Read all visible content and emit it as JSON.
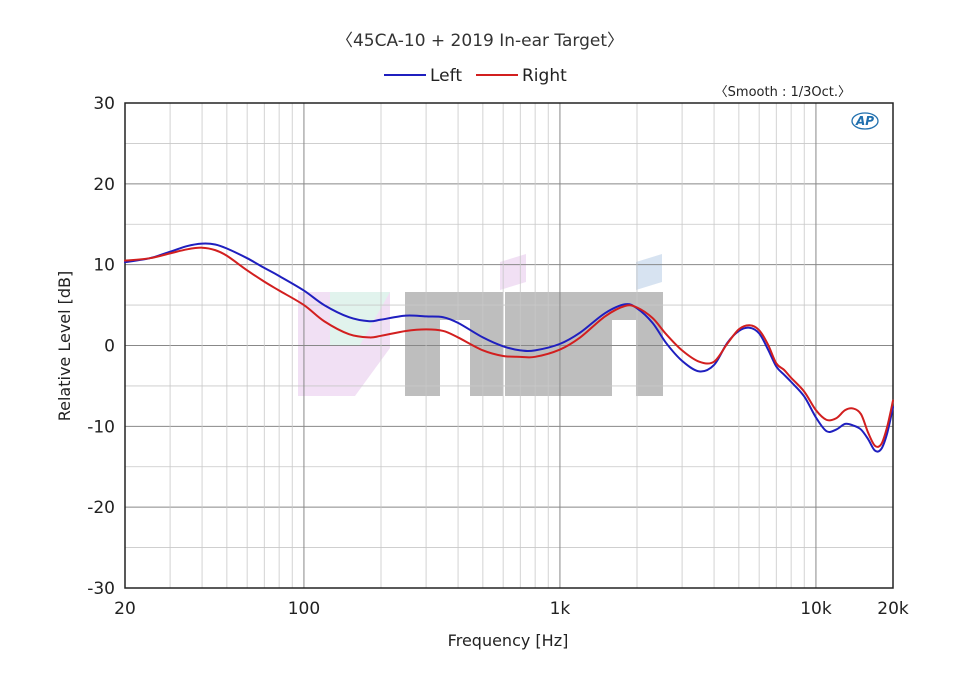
{
  "chart_data": {
    "type": "line",
    "title": "〈45CA-10 + 2019 In-ear Target〉",
    "xlabel": "Frequency [Hz]",
    "ylabel": "Relative Level [dB]",
    "xscale": "log",
    "xlim": [
      20,
      20000
    ],
    "ylim": [
      -30,
      30
    ],
    "xticks": [
      {
        "value": 20,
        "label": "20"
      },
      {
        "value": 100,
        "label": "100"
      },
      {
        "value": 1000,
        "label": "1k"
      },
      {
        "value": 10000,
        "label": "10k"
      },
      {
        "value": 20000,
        "label": "20k"
      }
    ],
    "yticks": [
      {
        "value": 30,
        "label": "30"
      },
      {
        "value": 20,
        "label": "20"
      },
      {
        "value": 10,
        "label": "10"
      },
      {
        "value": 0,
        "label": "0"
      },
      {
        "value": -10,
        "label": "-10"
      },
      {
        "value": -20,
        "label": "-20"
      },
      {
        "value": -30,
        "label": "-30"
      }
    ],
    "grid": true,
    "legend_position": "top-center",
    "smoothing_note": "〈Smooth : 1/3Oct.〉",
    "brand_mark": "AP",
    "series": [
      {
        "name": "Left",
        "color": "#1f1fbf",
        "x": [
          20,
          25,
          30,
          35,
          40,
          45,
          50,
          60,
          70,
          80,
          100,
          120,
          150,
          180,
          200,
          250,
          300,
          350,
          400,
          500,
          600,
          700,
          800,
          1000,
          1200,
          1500,
          1800,
          2000,
          2300,
          2600,
          3000,
          3500,
          4000,
          4500,
          5000,
          5500,
          6000,
          6500,
          7000,
          7500,
          8000,
          9000,
          10000,
          11000,
          12000,
          13000,
          14000,
          15000,
          16000,
          17000,
          18000,
          19000,
          20000
        ],
        "y": [
          10.3,
          10.8,
          11.6,
          12.3,
          12.6,
          12.5,
          12.0,
          10.8,
          9.6,
          8.6,
          6.8,
          5.0,
          3.5,
          3.0,
          3.2,
          3.7,
          3.6,
          3.5,
          2.8,
          1.0,
          -0.1,
          -0.6,
          -0.6,
          0.2,
          1.6,
          4.0,
          5.1,
          4.6,
          2.8,
          0.3,
          -1.9,
          -3.2,
          -2.4,
          0.3,
          1.8,
          2.2,
          1.5,
          -0.5,
          -2.6,
          -3.6,
          -4.5,
          -6.3,
          -8.9,
          -10.6,
          -10.4,
          -9.7,
          -9.9,
          -10.4,
          -11.6,
          -13.0,
          -12.8,
          -10.8,
          -7.6
        ]
      },
      {
        "name": "Right",
        "color": "#d21f1f",
        "x": [
          20,
          25,
          30,
          35,
          40,
          45,
          50,
          60,
          70,
          80,
          100,
          120,
          150,
          180,
          200,
          250,
          300,
          350,
          400,
          500,
          600,
          700,
          800,
          1000,
          1200,
          1500,
          1800,
          2000,
          2300,
          2600,
          3000,
          3500,
          4000,
          4500,
          5000,
          5500,
          6000,
          6500,
          7000,
          7500,
          8000,
          9000,
          10000,
          11000,
          12000,
          13000,
          14000,
          15000,
          16000,
          17000,
          18000,
          19000,
          20000
        ],
        "y": [
          10.5,
          10.8,
          11.4,
          11.9,
          12.1,
          11.8,
          11.1,
          9.3,
          7.9,
          6.8,
          5.0,
          3.0,
          1.4,
          1.0,
          1.2,
          1.8,
          2.0,
          1.8,
          1.0,
          -0.6,
          -1.3,
          -1.4,
          -1.4,
          -0.5,
          1.0,
          3.6,
          4.9,
          4.7,
          3.4,
          1.4,
          -0.6,
          -2.0,
          -2.0,
          0.2,
          2.0,
          2.5,
          1.9,
          0.1,
          -2.2,
          -3.0,
          -4.0,
          -5.7,
          -8.0,
          -9.2,
          -9.0,
          -8.0,
          -7.8,
          -8.5,
          -10.8,
          -12.4,
          -12.2,
          -10.0,
          -6.8
        ]
      }
    ]
  }
}
